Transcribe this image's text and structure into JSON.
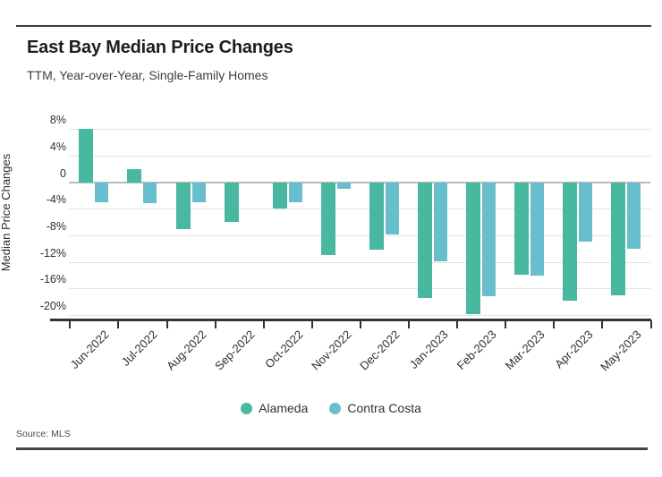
{
  "header": {
    "title": "East Bay Median Price Changes",
    "subtitle": "TTM, Year-over-Year, Single-Family Homes"
  },
  "chart_data": {
    "type": "bar",
    "title": "East Bay Median Price Changes",
    "subtitle": "TTM, Year-over-Year, Single-Family Homes",
    "categories": [
      "Jun-2022",
      "Jul-2022",
      "Aug-2022",
      "Sep-2022",
      "Oct-2022",
      "Nov-2022",
      "Dec-2022",
      "Jan-2023",
      "Feb-2023",
      "Mar-2023",
      "Apr-2023",
      "May-2023"
    ],
    "series": [
      {
        "name": "Alameda",
        "color": "#48b9a0",
        "values": [
          8,
          2,
          -7,
          -6,
          -4,
          -11,
          -10.2,
          -17.4,
          -19.8,
          -13.9,
          -17.9,
          -17
        ]
      },
      {
        "name": "Contra Costa",
        "color": "#69becd",
        "values": [
          -3,
          -3.1,
          -3,
          0,
          -3,
          -1,
          -7.8,
          -11.9,
          -17.2,
          -14,
          -8.9,
          -10
        ]
      }
    ],
    "xlabel": "",
    "ylabel": "Median Price Changes",
    "y_ticks": [
      "8%",
      "4%",
      "0",
      "-4%",
      "-8%",
      "-12%",
      "-16%",
      "-20%"
    ],
    "y_tick_values": [
      8,
      4,
      0,
      -4,
      -8,
      -12,
      -16,
      -20
    ],
    "ylim": [
      -21.5,
      8.5
    ],
    "value_unit": "%",
    "grid": true,
    "legend_position": "bottom"
  },
  "footer": {
    "source_label": "Source: MLS"
  }
}
